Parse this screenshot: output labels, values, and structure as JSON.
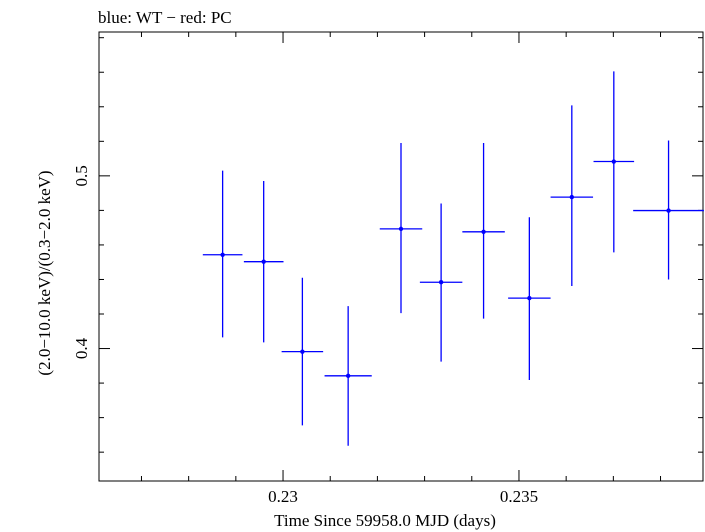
{
  "header": {
    "title": "blue: WT − red: PC"
  },
  "chart_data": {
    "type": "scatter",
    "title": "blue: WT − red: PC",
    "xlabel": "Time Since 59958.0 MJD (days)",
    "ylabel": "(2.0−10.0 keV)/(0.3−2.0 keV)",
    "xlim": [
      0.2261,
      0.2389
    ],
    "ylim": [
      0.3233,
      0.5833
    ],
    "xticks": [
      0.23,
      0.235
    ],
    "xtick_labels": [
      "0.23",
      "0.235"
    ],
    "yticks": [
      0.4,
      0.5
    ],
    "ytick_labels": [
      "0.4",
      "0.5"
    ],
    "grid": false,
    "series": [
      {
        "color": "#0000ff",
        "points": [
          {
            "x": 0.22872,
            "xerr": 0.00042,
            "y": 0.4543,
            "yerr_low": 0.0478,
            "yerr_high": 0.0487
          },
          {
            "x": 0.22959,
            "xerr": 0.00042,
            "y": 0.4503,
            "yerr_low": 0.0467,
            "yerr_high": 0.0467
          },
          {
            "x": 0.23041,
            "xerr": 0.00044,
            "y": 0.3982,
            "yerr_low": 0.0427,
            "yerr_high": 0.0428
          },
          {
            "x": 0.23138,
            "xerr": 0.0005,
            "y": 0.3842,
            "yerr_low": 0.0405,
            "yerr_high": 0.0404
          },
          {
            "x": 0.2325,
            "xerr": 0.00045,
            "y": 0.4693,
            "yerr_low": 0.0488,
            "yerr_high": 0.0497
          },
          {
            "x": 0.23335,
            "xerr": 0.00045,
            "y": 0.4384,
            "yerr_low": 0.046,
            "yerr_high": 0.0456
          },
          {
            "x": 0.23425,
            "xerr": 0.00045,
            "y": 0.4676,
            "yerr_low": 0.0503,
            "yerr_high": 0.0514
          },
          {
            "x": 0.23522,
            "xerr": 0.00045,
            "y": 0.4292,
            "yerr_low": 0.0474,
            "yerr_high": 0.0468
          },
          {
            "x": 0.23612,
            "xerr": 0.00045,
            "y": 0.4877,
            "yerr_low": 0.0515,
            "yerr_high": 0.0531
          },
          {
            "x": 0.23701,
            "xerr": 0.00043,
            "y": 0.5083,
            "yerr_low": 0.0526,
            "yerr_high": 0.0522
          },
          {
            "x": 0.23817,
            "xerr": 0.00075,
            "y": 0.4799,
            "yerr_low": 0.0399,
            "yerr_high": 0.0406
          }
        ]
      }
    ]
  }
}
